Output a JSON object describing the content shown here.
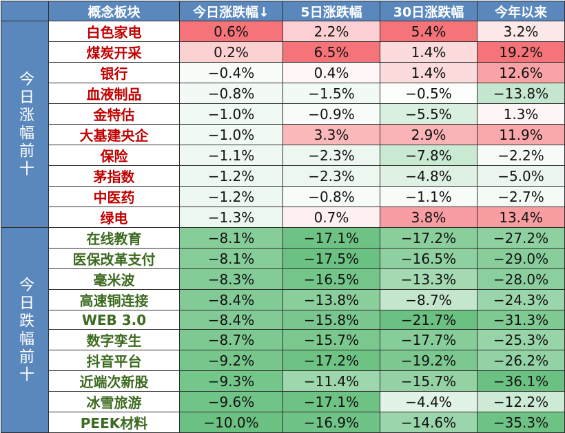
{
  "chart_data": {
    "type": "table",
    "columns": [
      "概念板块",
      "今日涨跌幅↓",
      "5日涨跌幅",
      "30日涨跌幅",
      "今年以来"
    ],
    "groups": [
      {
        "label": "今日涨幅前十",
        "rows": [
          {
            "name": "白色家电",
            "values": [
              "0.6%",
              "2.2%",
              "5.4%",
              "3.2%"
            ]
          },
          {
            "name": "煤炭开采",
            "values": [
              "0.2%",
              "6.5%",
              "1.4%",
              "19.2%"
            ]
          },
          {
            "name": "银行",
            "values": [
              "−0.4%",
              "0.4%",
              "1.4%",
              "12.6%"
            ]
          },
          {
            "name": "血液制品",
            "values": [
              "−0.8%",
              "−1.5%",
              "−0.5%",
              "−13.8%"
            ]
          },
          {
            "name": "金特估",
            "values": [
              "−1.0%",
              "−0.9%",
              "−5.5%",
              "1.3%"
            ]
          },
          {
            "name": "大基建央企",
            "values": [
              "−1.0%",
              "3.3%",
              "2.9%",
              "11.9%"
            ]
          },
          {
            "name": "保险",
            "values": [
              "−1.1%",
              "−2.3%",
              "−7.8%",
              "−2.2%"
            ]
          },
          {
            "name": "茅指数",
            "values": [
              "−1.2%",
              "−2.3%",
              "−4.8%",
              "−5.0%"
            ]
          },
          {
            "name": "中医药",
            "values": [
              "−1.2%",
              "−0.8%",
              "−1.1%",
              "−2.7%"
            ]
          },
          {
            "name": "绿电",
            "values": [
              "−1.3%",
              "0.7%",
              "3.8%",
              "13.4%"
            ]
          }
        ]
      },
      {
        "label": "今日跌幅前十",
        "rows": [
          {
            "name": "在线教育",
            "values": [
              "−8.1%",
              "−17.1%",
              "−17.2%",
              "−27.2%"
            ]
          },
          {
            "name": "医保改革支付",
            "values": [
              "−8.1%",
              "−17.5%",
              "−16.5%",
              "−29.0%"
            ]
          },
          {
            "name": "毫米波",
            "values": [
              "−8.3%",
              "−16.5%",
              "−13.3%",
              "−28.0%"
            ]
          },
          {
            "name": "高速铜连接",
            "values": [
              "−8.4%",
              "−13.8%",
              "−8.7%",
              "−24.3%"
            ]
          },
          {
            "name": "WEB 3.0",
            "values": [
              "−8.4%",
              "−15.8%",
              "−21.7%",
              "−31.3%"
            ]
          },
          {
            "name": "数字孪生",
            "values": [
              "−8.7%",
              "−15.7%",
              "−17.7%",
              "−25.3%"
            ]
          },
          {
            "name": "抖音平台",
            "values": [
              "−9.2%",
              "−17.2%",
              "−19.2%",
              "−26.2%"
            ]
          },
          {
            "name": "近端次新股",
            "values": [
              "−9.3%",
              "−11.4%",
              "−15.7%",
              "−36.1%"
            ]
          },
          {
            "name": "冰雪旅游",
            "values": [
              "−9.6%",
              "−17.1%",
              "−4.4%",
              "−12.2%"
            ]
          },
          {
            "name": "PEEK材料",
            "values": [
              "−10.0%",
              "−16.9%",
              "−14.6%",
              "−35.3%"
            ]
          }
        ]
      }
    ]
  },
  "colors": {
    "header_bg": "#5a88bd",
    "gain_text": "#c00000",
    "loss_text": "#3c6a1f",
    "positive_max": "#f4646a",
    "negative_max": "#63be7b"
  }
}
